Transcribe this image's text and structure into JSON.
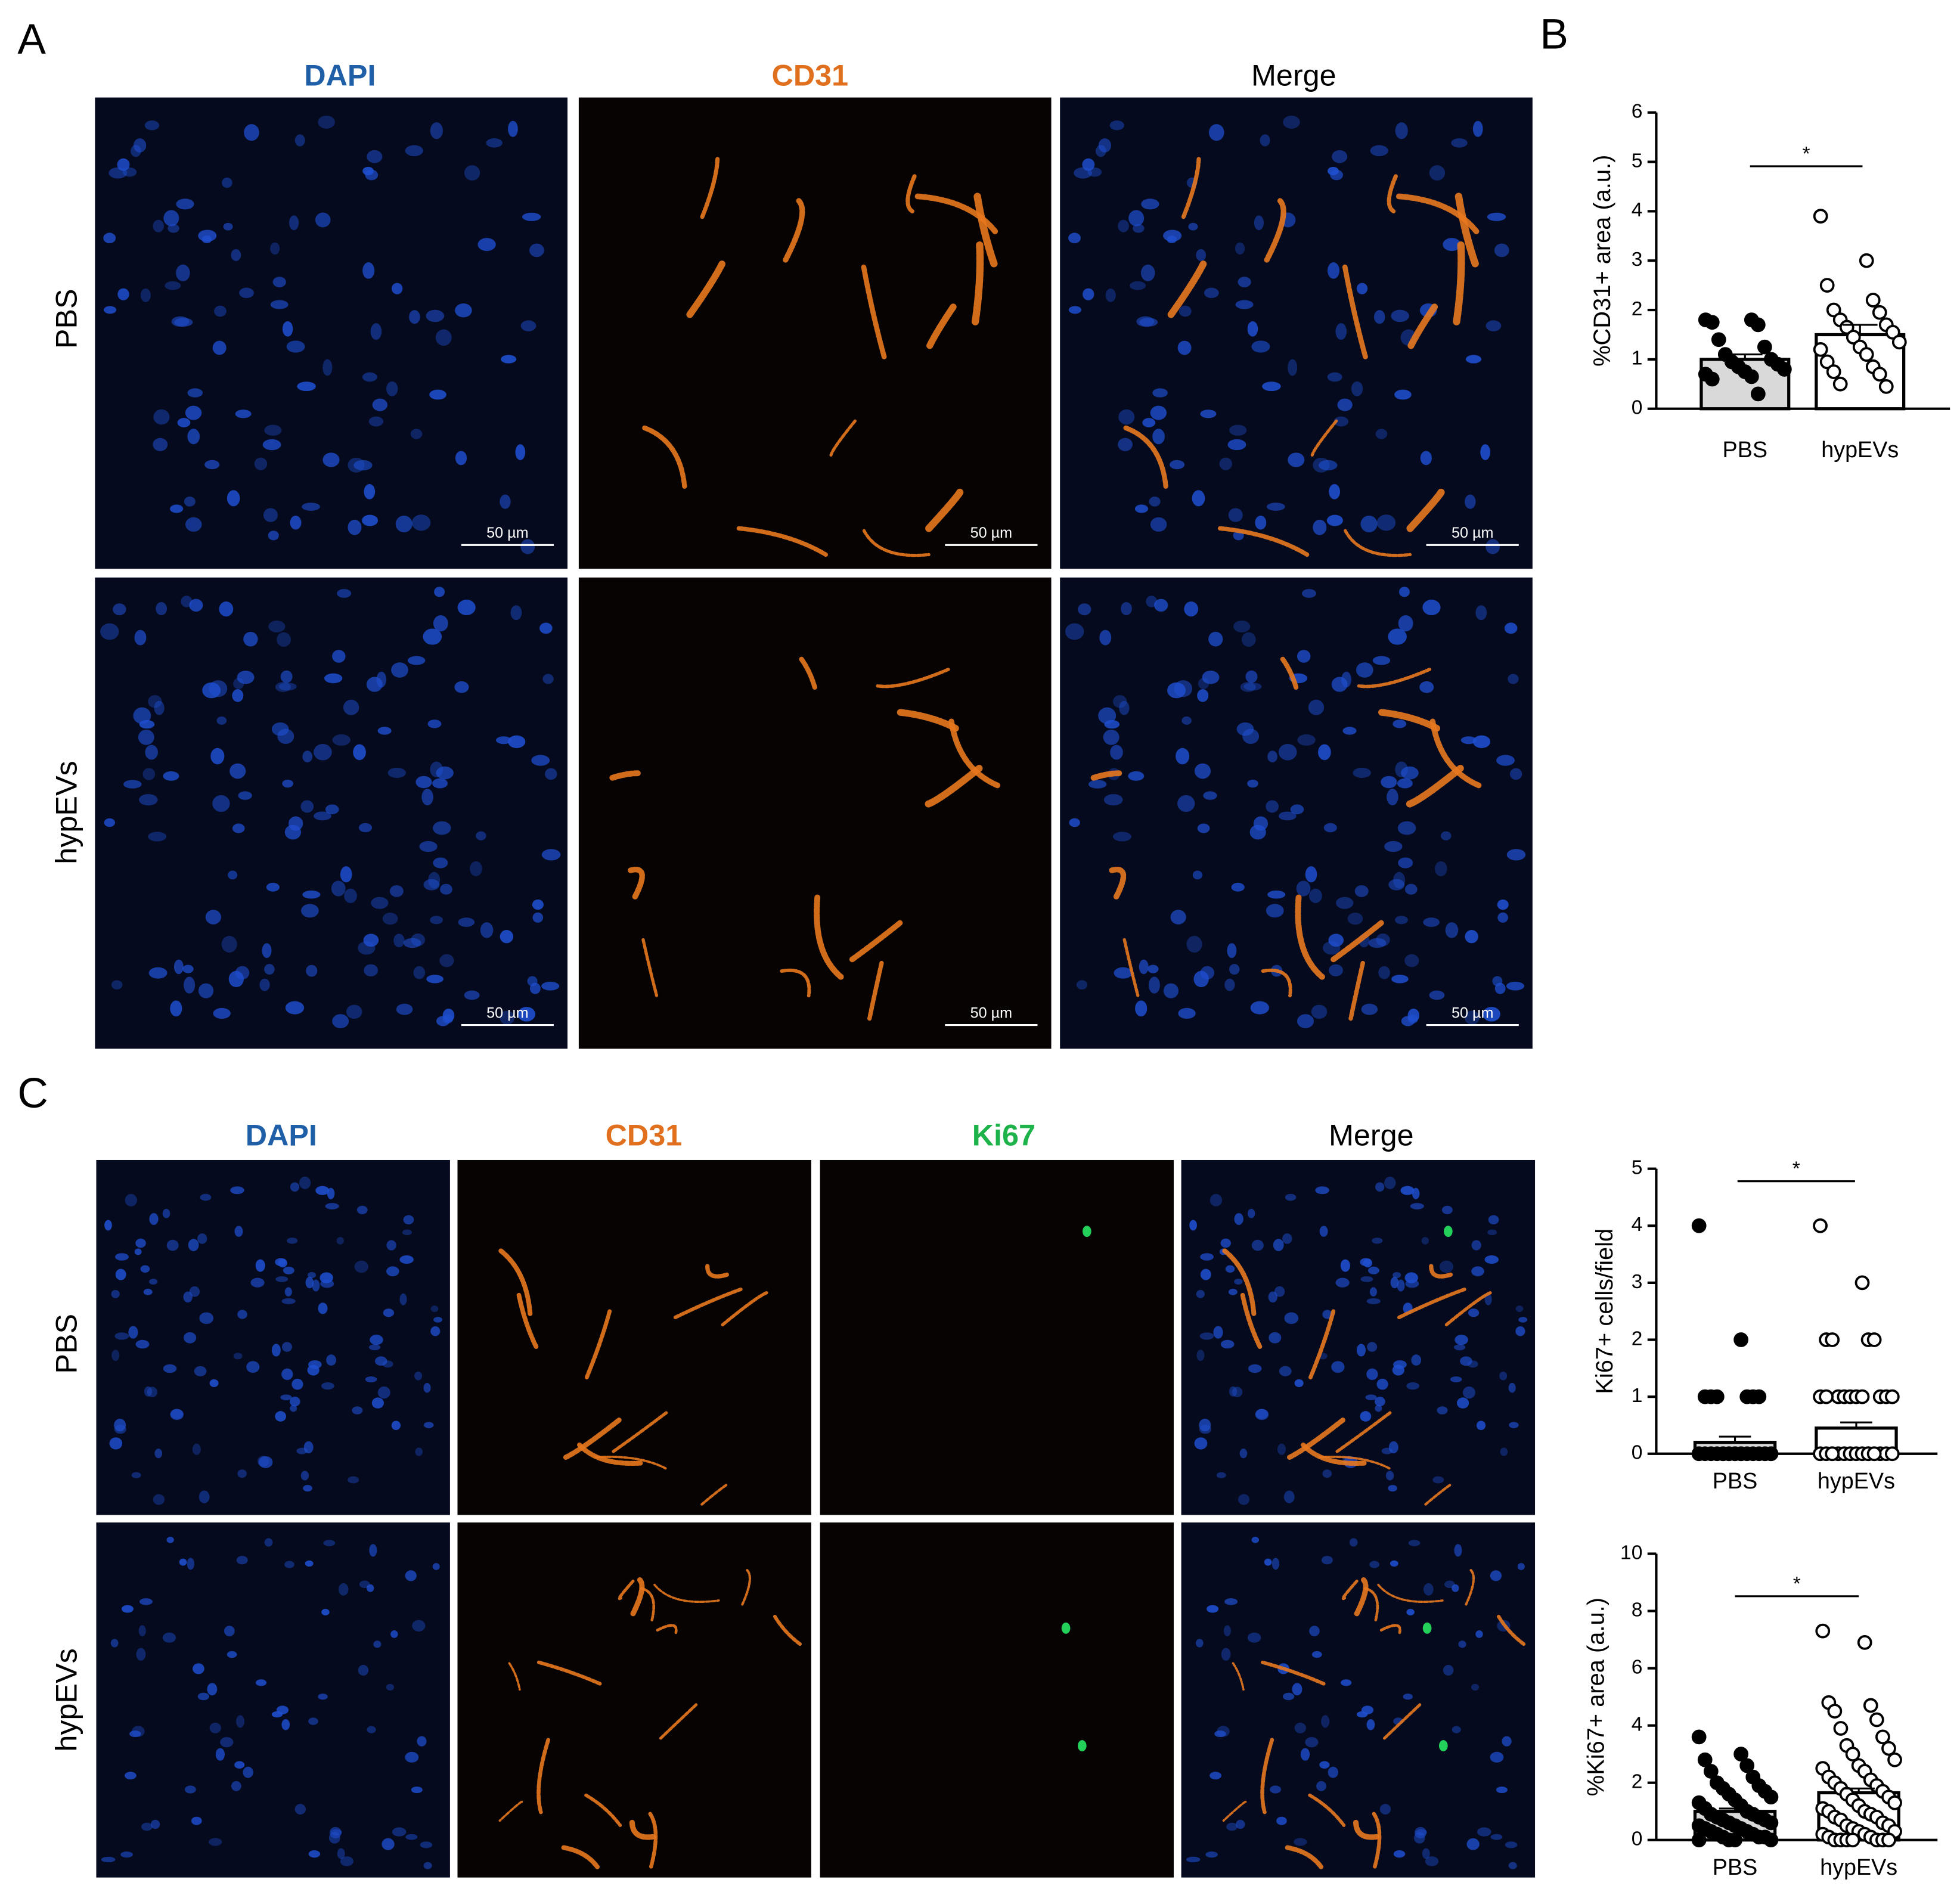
{
  "panel_a": {
    "label": "A",
    "columns": [
      "DAPI",
      "CD31",
      "Merge"
    ],
    "rows": [
      "PBS",
      "hypEVs"
    ],
    "scale_bar": "50 µm"
  },
  "panel_b": {
    "label": "B"
  },
  "panel_c": {
    "label": "C",
    "columns": [
      "DAPI",
      "CD31",
      "Ki67",
      "Merge"
    ],
    "rows": [
      "PBS",
      "hypEVs"
    ]
  },
  "chart_data": [
    {
      "type": "bar",
      "ylabel": "%CD31+ area (a.u.)",
      "categories": [
        "PBS",
        "hypEVs"
      ],
      "values": [
        1.0,
        1.5
      ],
      "errors": [
        0.1,
        0.2
      ],
      "points": [
        [
          1.8,
          1.8,
          1.75,
          1.7,
          1.4,
          1.25,
          1.1,
          1.0,
          0.95,
          0.9,
          0.85,
          0.8,
          0.75,
          0.7,
          0.65,
          0.6,
          0.3
        ],
        [
          3.9,
          3.0,
          2.5,
          2.2,
          2.0,
          1.95,
          1.8,
          1.7,
          1.65,
          1.55,
          1.45,
          1.35,
          1.25,
          1.2,
          1.1,
          0.95,
          0.85,
          0.75,
          0.7,
          0.5,
          0.45
        ]
      ],
      "ylim": [
        0,
        6
      ],
      "yticks": [
        0,
        1,
        2,
        3,
        4,
        5,
        6
      ],
      "annotation": "*",
      "bar_colors": [
        "#d9d9d9",
        "#ffffff"
      ],
      "point_colors": [
        "#000000",
        "#ffffff"
      ]
    },
    {
      "type": "bar",
      "ylabel": "Ki67+ cells/field",
      "categories": [
        "PBS",
        "hypEVs"
      ],
      "values": [
        0.2,
        0.45
      ],
      "errors": [
        0.1,
        0.1
      ],
      "points": [
        [
          4,
          2,
          1,
          1,
          1,
          1,
          1,
          1,
          0,
          0,
          0,
          0,
          0,
          0,
          0,
          0,
          0,
          0,
          0,
          0,
          0,
          0,
          0,
          0,
          0,
          0,
          0,
          0
        ],
        [
          4,
          3,
          2,
          2,
          2,
          2,
          1,
          1,
          1,
          1,
          1,
          1,
          1,
          1,
          1,
          1,
          0,
          0,
          0,
          0,
          0,
          0,
          0,
          0,
          0,
          0,
          0,
          0,
          0,
          0,
          0,
          0
        ]
      ],
      "ylim": [
        0,
        5
      ],
      "yticks": [
        0,
        1,
        2,
        3,
        4,
        5
      ],
      "annotation": "*",
      "bar_colors": [
        "#d9d9d9",
        "#ffffff"
      ],
      "point_colors": [
        "#000000",
        "#ffffff"
      ]
    },
    {
      "type": "bar",
      "ylabel": "%Ki67+ area (a.u.)",
      "categories": [
        "PBS",
        "hypEVs"
      ],
      "values": [
        1.0,
        1.65
      ],
      "errors": [
        0.1,
        0.15
      ],
      "points": [
        [
          3.6,
          3.0,
          2.8,
          2.6,
          2.4,
          2.2,
          2.0,
          1.9,
          1.8,
          1.7,
          1.6,
          1.5,
          1.4,
          1.3,
          1.2,
          1.1,
          1.0,
          0.9,
          0.9,
          0.8,
          0.8,
          0.7,
          0.7,
          0.6,
          0.6,
          0.5,
          0.5,
          0.4,
          0.4,
          0.3,
          0.3,
          0.2,
          0.2,
          0.1,
          0.1,
          0.1,
          0,
          0,
          0,
          0
        ],
        [
          7.3,
          6.9,
          4.8,
          4.7,
          4.5,
          4.2,
          3.9,
          3.6,
          3.3,
          3.2,
          3.0,
          2.8,
          2.6,
          2.5,
          2.4,
          2.2,
          2.1,
          2.0,
          1.9,
          1.8,
          1.7,
          1.6,
          1.5,
          1.4,
          1.3,
          1.2,
          1.1,
          1.0,
          1.0,
          0.9,
          0.8,
          0.8,
          0.7,
          0.6,
          0.5,
          0.5,
          0.4,
          0.3,
          0.3,
          0.2,
          0.2,
          0.1,
          0.1,
          0,
          0,
          0,
          0,
          0,
          0,
          0
        ]
      ],
      "ylim": [
        0,
        10
      ],
      "yticks": [
        0,
        2,
        4,
        6,
        8,
        10
      ],
      "annotation": "*",
      "bar_colors": [
        "#d9d9d9",
        "#ffffff"
      ],
      "point_colors": [
        "#000000",
        "#ffffff"
      ]
    }
  ]
}
